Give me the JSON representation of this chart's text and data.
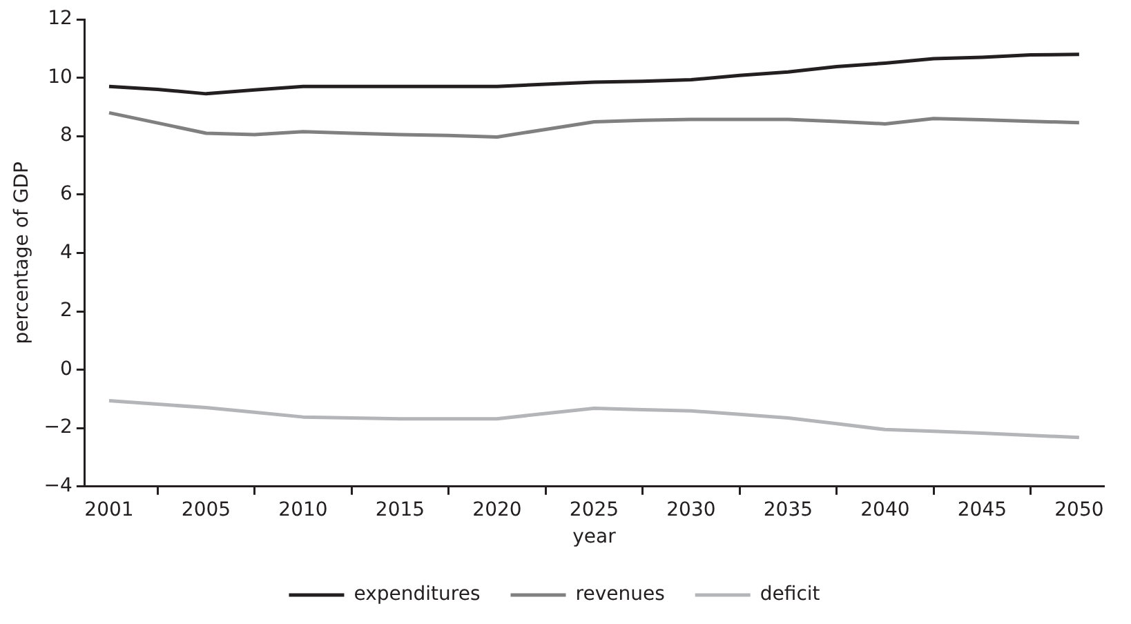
{
  "chart_data": {
    "type": "line",
    "xlabel": "year",
    "ylabel": "percentage of GDP",
    "categories": [
      "2001",
      null,
      "2005",
      null,
      "2010",
      null,
      "2015",
      null,
      "2020",
      null,
      "2025",
      null,
      "2030",
      null,
      "2035",
      null,
      "2040",
      null,
      "2045",
      null,
      "2050"
    ],
    "series": [
      {
        "name": "expenditures",
        "color": "#231f20",
        "values": [
          9.7,
          9.6,
          9.45,
          9.58,
          9.7,
          9.7,
          9.7,
          9.7,
          9.7,
          9.78,
          9.85,
          9.88,
          9.93,
          10.08,
          10.2,
          10.38,
          10.5,
          10.65,
          10.7,
          10.78,
          10.8
        ]
      },
      {
        "name": "revenues",
        "color": "#808080",
        "values": [
          8.8,
          8.45,
          8.1,
          8.05,
          8.15,
          8.1,
          8.05,
          8.02,
          7.97,
          8.23,
          8.49,
          8.54,
          8.57,
          8.57,
          8.57,
          8.5,
          8.42,
          8.6,
          8.56,
          8.51,
          8.46
        ]
      },
      {
        "name": "deficit",
        "color": "#b3b5b8",
        "values": [
          -1.06,
          -1.18,
          -1.3,
          -1.46,
          -1.62,
          -1.65,
          -1.68,
          -1.68,
          -1.68,
          -1.5,
          -1.32,
          -1.37,
          -1.41,
          -1.53,
          -1.65,
          -1.85,
          -2.05,
          -2.11,
          -2.17,
          -2.25,
          -2.32
        ]
      }
    ],
    "ylim": [
      -4,
      12
    ],
    "yticks": [
      -4,
      -2,
      0,
      2,
      4,
      6,
      8,
      10,
      12
    ],
    "grid": false,
    "legend": "bottom",
    "marker": "none",
    "line_style": "solid"
  }
}
